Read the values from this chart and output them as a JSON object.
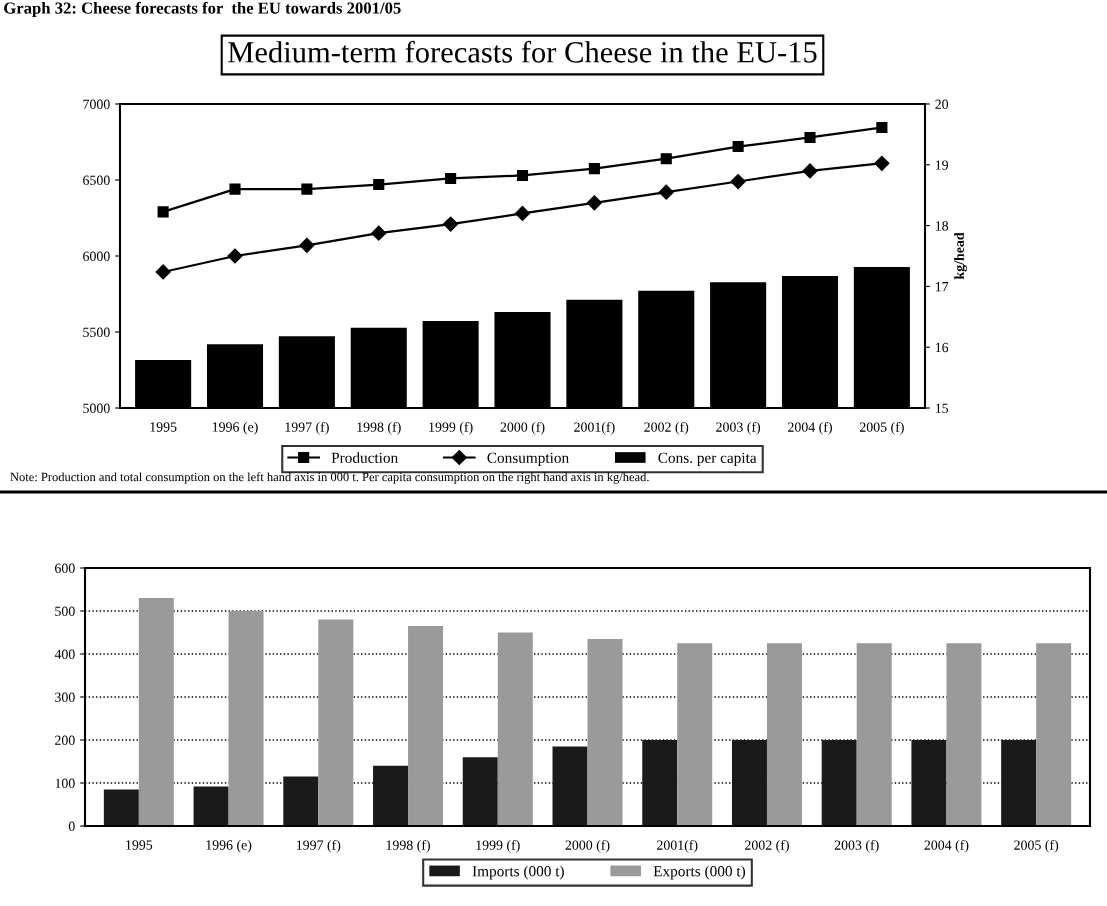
{
  "chart_data": [
    {
      "type": "line",
      "title": "Medium-term forecasts for Cheese in the EU-15",
      "y2label": "kg/head",
      "annotations": [
        "Graph 32: Cheese forecasts for  the EU towards 2001/05",
        "Note: Production and total consumption on the left hand axis in 000 t. Per capita consumption on the right hand axis in kg/head."
      ],
      "categories": [
        "1995",
        "1996 (e)",
        "1997 (f)",
        "1998 (f)",
        "1999 (f)",
        "2000 (f)",
        "2001(f)",
        "2002 (f)",
        "2003 (f)",
        "2004 (f)",
        "2005 (f)"
      ],
      "series": [
        {
          "name": "Production",
          "type": "line",
          "color": "#000000",
          "marker": "square",
          "values": [
            6290,
            6440,
            6440,
            6470,
            6510,
            6530,
            6575,
            6640,
            6720,
            6780,
            6845
          ]
        },
        {
          "name": "Consumption",
          "type": "line",
          "color": "#000000",
          "marker": "diamond",
          "values": [
            5895,
            6000,
            6070,
            6150,
            6210,
            6280,
            6350,
            6420,
            6490,
            6560,
            6610
          ]
        },
        {
          "name": "Cons. per capita",
          "type": "bar",
          "axis": "y2",
          "color": "#000000",
          "values": [
            15.79,
            16.05,
            16.18,
            16.32,
            16.43,
            16.58,
            16.78,
            16.93,
            17.07,
            17.17,
            17.32
          ]
        }
      ],
      "ylim": [
        5000,
        7000
      ],
      "yticks": [
        5000,
        5500,
        6000,
        6500,
        7000
      ],
      "y2lim": [
        15,
        20
      ],
      "y2ticks": [
        15,
        16,
        17,
        18,
        19,
        20
      ],
      "grid": false,
      "legend": "bottom"
    },
    {
      "type": "bar",
      "categories": [
        "1995",
        "1996 (e)",
        "1997 (f)",
        "1998 (f)",
        "1999 (f)",
        "2000 (f)",
        "2001(f)",
        "2002 (f)",
        "2003 (f)",
        "2004 (f)",
        "2005 (f)"
      ],
      "series": [
        {
          "name": "Imports (000 t)",
          "color": "#1a1a1a",
          "values": [
            85,
            92,
            115,
            140,
            160,
            185,
            200,
            200,
            200,
            200,
            200
          ]
        },
        {
          "name": "Exports (000 t)",
          "color": "#9a9a9a",
          "values": [
            530,
            500,
            480,
            465,
            450,
            435,
            425,
            425,
            425,
            425,
            425
          ]
        }
      ],
      "ylim": [
        0,
        600
      ],
      "yticks": [
        0,
        100,
        200,
        300,
        400,
        500,
        600
      ],
      "grid": "y",
      "legend": "bottom"
    }
  ]
}
